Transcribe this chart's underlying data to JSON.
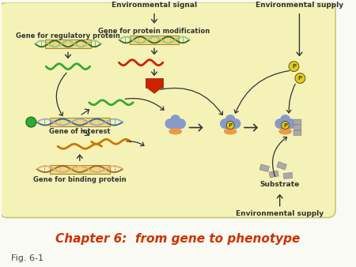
{
  "background_color": "#fafaf5",
  "cell_bg": "#f5f2b8",
  "cell_border": "#c8c870",
  "title": "Chapter 6:  from gene to phenotype",
  "title_color": "#cc3300",
  "title_fontsize": 11,
  "fig_label": "Fig. 6-1",
  "fig_label_color": "#444444",
  "fig_label_fontsize": 8,
  "label_env_signal": "Environmental signal",
  "label_env_supply_top": "Environmental supply",
  "label_env_supply_bot": "Environmental supply",
  "label_gene_mod": "Gene for protein modification",
  "label_gene_reg": "Gene for regulatory protein",
  "label_gene_int": "Gene of interest",
  "label_gene_bind": "Gene for binding protein",
  "label_substrate": "Substrate",
  "label_fontsize": 6.5,
  "dna_green1": "#336633",
  "dna_green2": "#88cc88",
  "dna_blue1": "#336699",
  "dna_blue2": "#99aacc",
  "dna_orange1": "#996633",
  "dna_orange2": "#ddaa77",
  "dna_red1": "#993333",
  "dna_red2": "#cc9999",
  "mrna_green": "#33aa33",
  "mrna_red": "#cc2200",
  "mrna_orange": "#cc7700",
  "protein_blue": "#8899cc",
  "protein_orange": "#ee9944",
  "phosphate_fill": "#ddcc22",
  "phosphate_text": "#554400",
  "red_mod_color": "#cc2200",
  "substrate_color": "#aaaaaa",
  "arrow_color": "#333333",
  "box_fill": "#eecc66",
  "box_edge": "#886600"
}
